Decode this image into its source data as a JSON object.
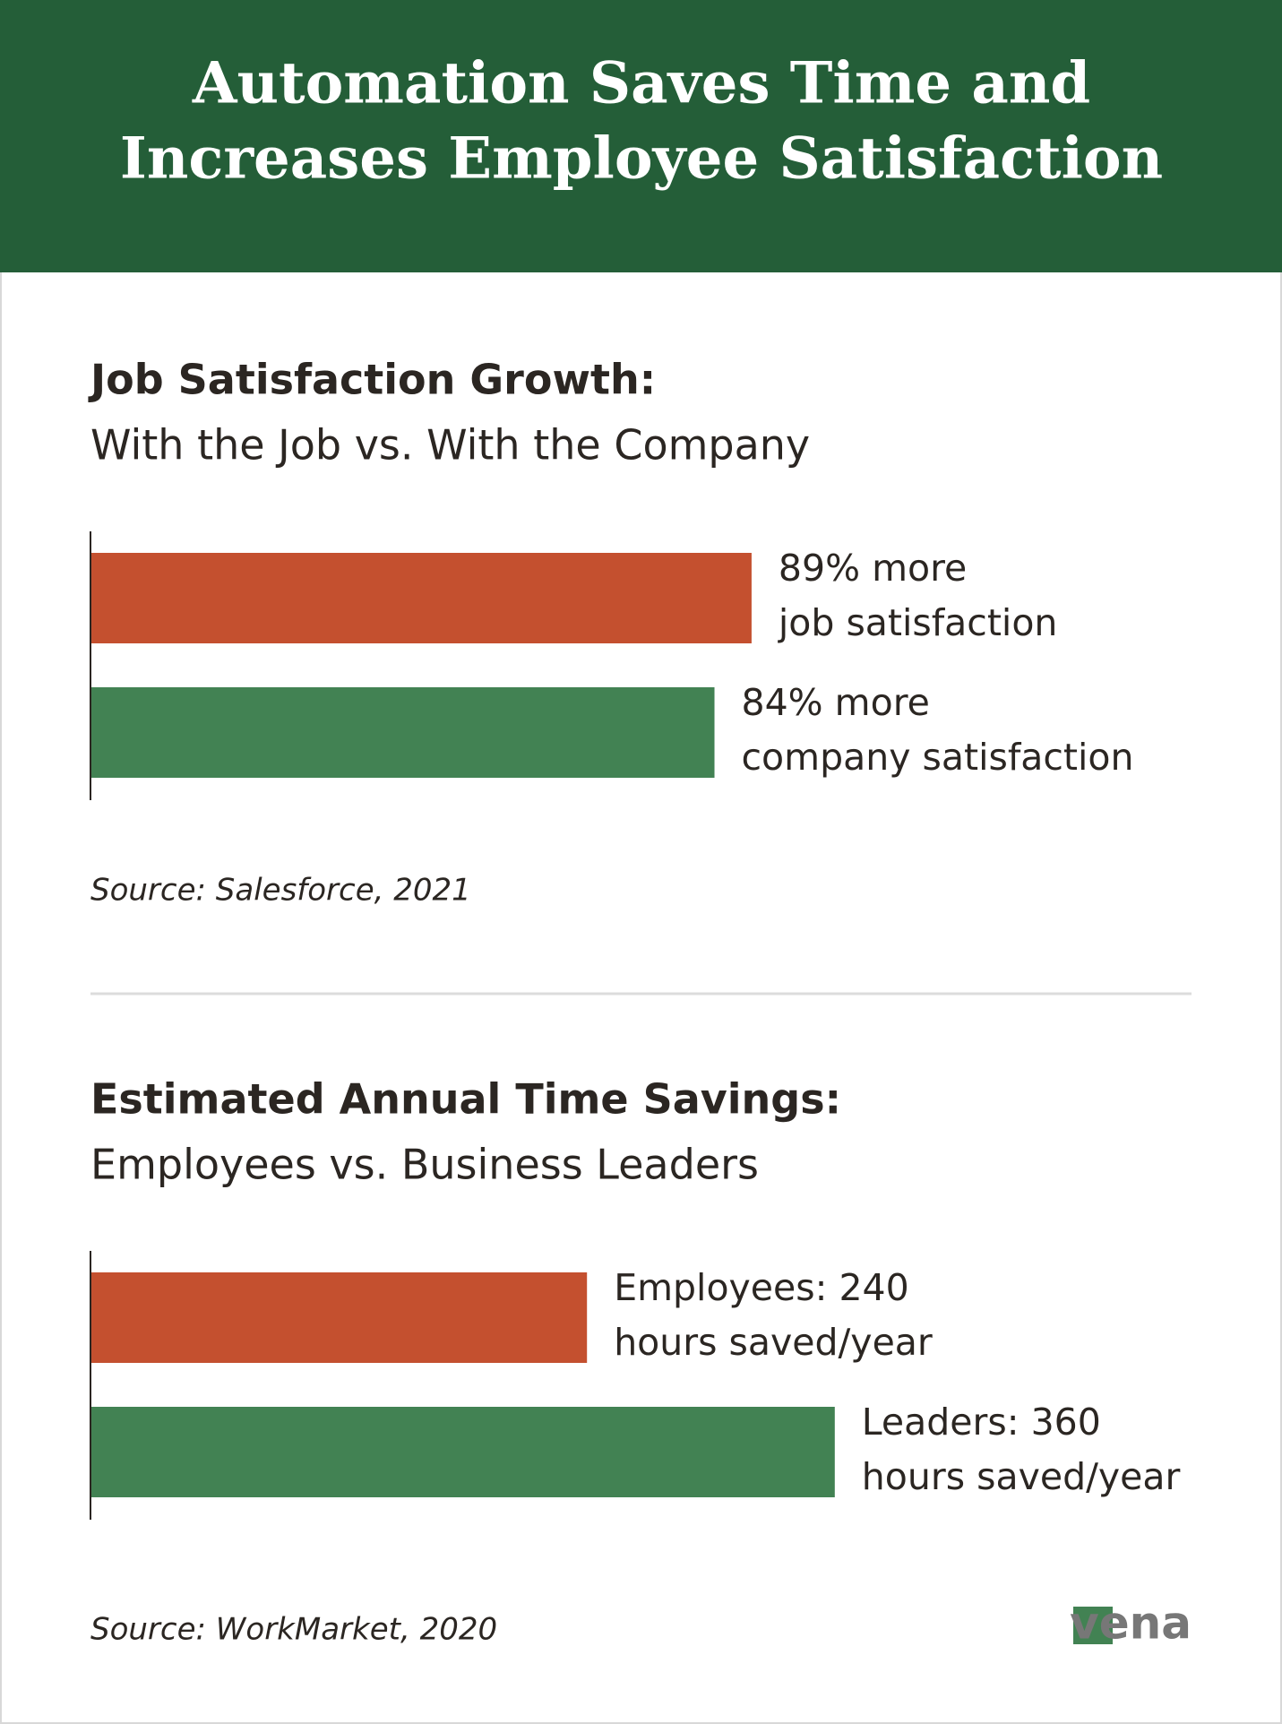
{
  "header": {
    "title": [
      "Automation Saves Time and",
      "Increases Employee Satisfaction"
    ]
  },
  "chart_data": [
    {
      "type": "bar",
      "orientation": "horizontal",
      "title": "Job Satisfaction Growth:",
      "subtitle": "With the Job vs. With the Company",
      "values": [
        89,
        84
      ],
      "value_labels": [
        [
          "89% more",
          "job satisfaction"
        ],
        [
          "84% more",
          "company satisfaction"
        ]
      ],
      "colors": [
        "#c4502f",
        "#428253"
      ],
      "source": "Source: Salesforce, 2021"
    },
    {
      "type": "bar",
      "orientation": "horizontal",
      "title": "Estimated Annual Time Savings:",
      "subtitle": "Employees vs. Business Leaders",
      "values": [
        240,
        360
      ],
      "value_labels": [
        [
          "Employees: 240",
          "hours saved/year"
        ],
        [
          "Leaders: 360",
          "hours saved/year"
        ]
      ],
      "colors": [
        "#c4502f",
        "#428253"
      ],
      "source": "Source: WorkMarket, 2020"
    }
  ],
  "logo": "vena"
}
